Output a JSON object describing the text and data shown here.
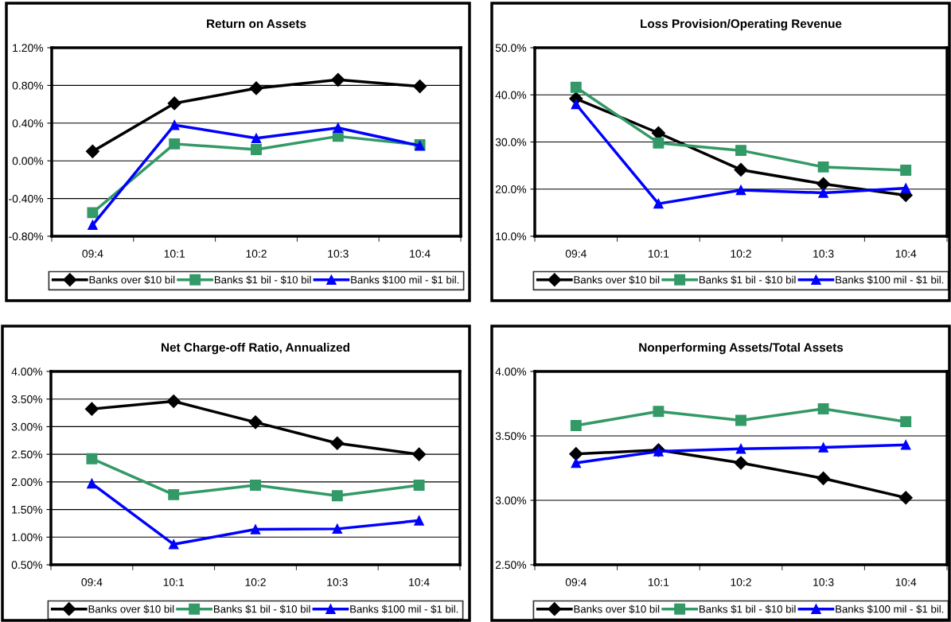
{
  "chart_data": [
    {
      "type": "line",
      "title": "Return on Assets",
      "categories": [
        "09:4",
        "10:1",
        "10:2",
        "10:3",
        "10:4"
      ],
      "series": [
        {
          "name": "Banks over $10 bil",
          "color": "#000000",
          "marker": "diamond",
          "values": [
            0.1,
            0.61,
            0.77,
            0.86,
            0.79
          ]
        },
        {
          "name": "Banks $1 bil - $10 bil",
          "color": "#339966",
          "marker": "square",
          "values": [
            -0.55,
            0.18,
            0.12,
            0.26,
            0.17
          ]
        },
        {
          "name": "Banks $100 mil - $1 bil.",
          "color": "#0000ff",
          "marker": "triangle",
          "values": [
            -0.68,
            0.38,
            0.24,
            0.35,
            0.16
          ]
        }
      ],
      "ylim": [
        -0.8,
        1.2
      ],
      "yticks": [
        {
          "value": -0.8,
          "label": "-0.80%"
        },
        {
          "value": -0.4,
          "label": "-0.40%"
        },
        {
          "value": 0,
          "label": "0.00%"
        },
        {
          "value": 0.4,
          "label": "0.40%"
        },
        {
          "value": 0.8,
          "label": "0.80%"
        },
        {
          "value": 1.2,
          "label": "1.20%"
        }
      ],
      "grid": "y",
      "legend": "bottom"
    },
    {
      "type": "line",
      "title": "Loss Provision/Operating Revenue",
      "categories": [
        "09:4",
        "10:1",
        "10:2",
        "10:3",
        "10:4"
      ],
      "series": [
        {
          "name": "Banks over $10 bil",
          "color": "#000000",
          "marker": "diamond",
          "values": [
            39.2,
            31.9,
            24.1,
            21.1,
            18.7
          ]
        },
        {
          "name": "Banks $1 bil - $10 bil",
          "color": "#339966",
          "marker": "square",
          "values": [
            41.6,
            29.8,
            28.2,
            24.7,
            24.0
          ]
        },
        {
          "name": "Banks $100 mil - $1 bil.",
          "color": "#0000ff",
          "marker": "triangle",
          "values": [
            38.0,
            16.9,
            19.8,
            19.2,
            20.2
          ]
        }
      ],
      "ylim": [
        10,
        50
      ],
      "yticks": [
        {
          "value": 10,
          "label": "10.0%"
        },
        {
          "value": 20,
          "label": "20.0%"
        },
        {
          "value": 30,
          "label": "30.0%"
        },
        {
          "value": 40,
          "label": "40.0%"
        },
        {
          "value": 50,
          "label": "50.0%"
        }
      ],
      "grid": "y",
      "legend": "bottom"
    },
    {
      "type": "line",
      "title": "Net Charge-off Ratio, Annualized",
      "categories": [
        "09:4",
        "10:1",
        "10:2",
        "10:3",
        "10:4"
      ],
      "series": [
        {
          "name": "Banks over $10 bil",
          "color": "#000000",
          "marker": "diamond",
          "values": [
            3.32,
            3.46,
            3.08,
            2.7,
            2.5
          ]
        },
        {
          "name": "Banks $1 bil - $10 bil",
          "color": "#339966",
          "marker": "square",
          "values": [
            2.42,
            1.77,
            1.94,
            1.75,
            1.94
          ]
        },
        {
          "name": "Banks $100 mil - $1 bil.",
          "color": "#0000ff",
          "marker": "triangle",
          "values": [
            1.97,
            0.87,
            1.14,
            1.15,
            1.3
          ]
        }
      ],
      "ylim": [
        0.5,
        4.0
      ],
      "yticks": [
        {
          "value": 0.5,
          "label": "0.50%"
        },
        {
          "value": 1.0,
          "label": "1.00%"
        },
        {
          "value": 1.5,
          "label": "1.50%"
        },
        {
          "value": 2.0,
          "label": "2.00%"
        },
        {
          "value": 2.5,
          "label": "2.50%"
        },
        {
          "value": 3.0,
          "label": "3.00%"
        },
        {
          "value": 3.5,
          "label": "3.50%"
        },
        {
          "value": 4.0,
          "label": "4.00%"
        }
      ],
      "grid": "y",
      "legend": "bottom"
    },
    {
      "type": "line",
      "title": "Nonperforming Assets/Total Assets",
      "categories": [
        "09:4",
        "10:1",
        "10:2",
        "10:3",
        "10:4"
      ],
      "series": [
        {
          "name": "Banks over $10 bil",
          "color": "#000000",
          "marker": "diamond",
          "values": [
            3.36,
            3.39,
            3.29,
            3.17,
            3.02
          ]
        },
        {
          "name": "Banks $1 bil - $10 bil",
          "color": "#339966",
          "marker": "square",
          "values": [
            3.58,
            3.69,
            3.62,
            3.71,
            3.61
          ]
        },
        {
          "name": "Banks $100 mil - $1 bil.",
          "color": "#0000ff",
          "marker": "triangle",
          "values": [
            3.29,
            3.38,
            3.4,
            3.41,
            3.43
          ]
        }
      ],
      "ylim": [
        2.5,
        4.0
      ],
      "yticks": [
        {
          "value": 2.5,
          "label": "2.50%"
        },
        {
          "value": 3.0,
          "label": "3.00%"
        },
        {
          "value": 3.5,
          "label": "3.50%"
        },
        {
          "value": 4.0,
          "label": "4.00%"
        }
      ],
      "grid": "y",
      "legend": "bottom"
    }
  ]
}
